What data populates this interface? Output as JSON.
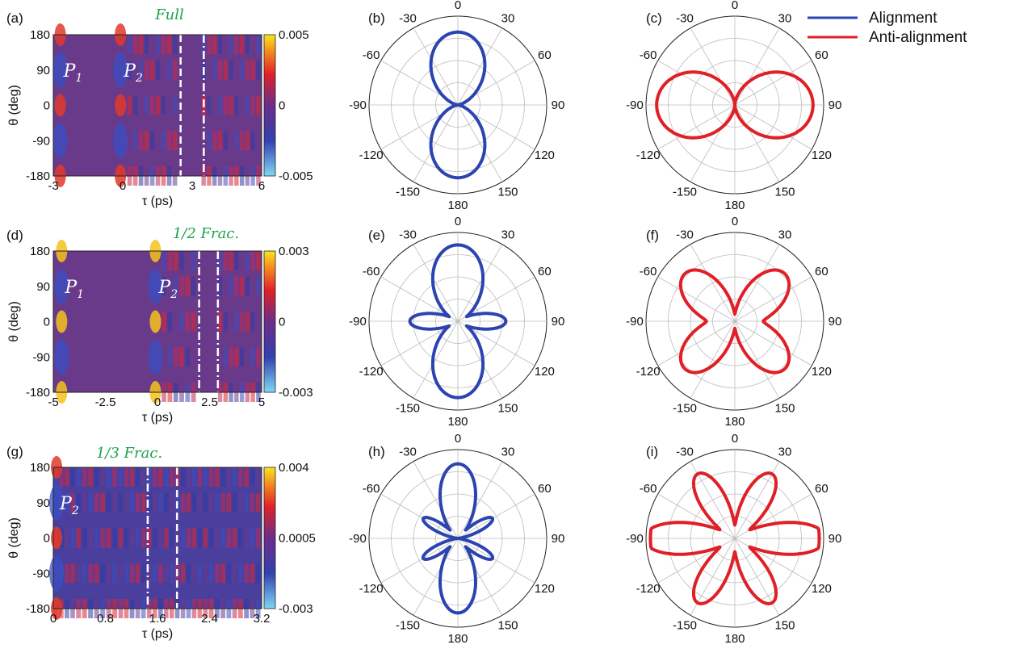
{
  "legend": {
    "entries": [
      {
        "label": "Alignment",
        "color": "#2b44b0"
      },
      {
        "label": "Anti-alignment",
        "color": "#e01f26"
      }
    ]
  },
  "chart_data": [
    {
      "type": "heatmap",
      "panel": "(a)",
      "annotation": "Full",
      "xlabel": "τ (ps)",
      "ylabel": "θ (deg)",
      "xlim": [
        -3,
        6
      ],
      "xticks": [
        "-3",
        "0",
        "3",
        "6"
      ],
      "ylim": [
        -180,
        180
      ],
      "yticks": [
        "180",
        "90",
        "0",
        "-90",
        "-180"
      ],
      "colorbar": {
        "ticks": [
          "0.005",
          "0",
          "-0.005"
        ],
        "range": [
          -0.005,
          0.005
        ]
      },
      "peaks": [
        {
          "label": "P",
          "sub": "1",
          "tau": -2.7
        },
        {
          "label": "P",
          "sub": "2",
          "tau": -0.1
        }
      ],
      "marker_lines": [
        {
          "tau": 2.5,
          "style": "dashed"
        },
        {
          "tau": 3.5,
          "style": "dash-dot"
        }
      ],
      "revival_bands": [
        -3,
        0.2,
        2.4,
        3.4,
        6
      ]
    },
    {
      "type": "heatmap",
      "panel": "(d)",
      "annotation": "1/2 Frac.",
      "xlabel": "τ (ps)",
      "ylabel": "θ (deg)",
      "xlim": [
        -5,
        5
      ],
      "xticks": [
        "-5",
        "-2.5",
        "0",
        "2.5",
        "5"
      ],
      "ylim": [
        -180,
        180
      ],
      "yticks": [
        "180",
        "90",
        "0",
        "-90",
        "-180"
      ],
      "colorbar": {
        "ticks": [
          "0.003",
          "0",
          "-0.003"
        ],
        "range": [
          -0.003,
          0.003
        ]
      },
      "peaks": [
        {
          "label": "P",
          "sub": "1",
          "tau": -4.6
        },
        {
          "label": "P",
          "sub": "2",
          "tau": -0.1
        }
      ],
      "marker_lines": [
        {
          "tau": 2.0,
          "style": "dash-dot"
        },
        {
          "tau": 2.9,
          "style": "dash-dot"
        }
      ],
      "revival_bands": [
        -5,
        0.2,
        1.9,
        2.9,
        5
      ]
    },
    {
      "type": "heatmap",
      "panel": "(g)",
      "annotation": "1/3 Frac.",
      "xlabel": "τ (ps)",
      "ylabel": "θ (deg)",
      "xlim": [
        0,
        3.2
      ],
      "xticks": [
        "0",
        "0.8",
        "1.6",
        "2.4",
        "3.2"
      ],
      "ylim": [
        -180,
        180
      ],
      "yticks": [
        "180",
        "90",
        "0",
        "-90",
        "-180"
      ],
      "colorbar": {
        "ticks": [
          "0.004",
          "0.0005",
          "-0.003"
        ],
        "range": [
          -0.003,
          0.004
        ]
      },
      "peaks": [
        {
          "label": "P",
          "sub": "2",
          "tau": 0.05
        }
      ],
      "marker_lines": [
        {
          "tau": 1.45,
          "style": "dash-dot"
        },
        {
          "tau": 1.9,
          "style": "dashed"
        }
      ],
      "revival_bands": [
        0,
        0.35,
        1.0,
        1.7,
        2.3,
        3.2
      ]
    },
    {
      "type": "polar",
      "panel": "(b)",
      "series": "Alignment",
      "shape": "cos2",
      "n": 1,
      "amp": [
        0.82,
        0.0
      ]
    },
    {
      "type": "polar",
      "panel": "(c)",
      "series": "Anti-alignment",
      "shape": "sin2",
      "n": 1,
      "amp": [
        0.0,
        0.88
      ]
    },
    {
      "type": "polar",
      "panel": "(e)",
      "series": "Alignment",
      "shape": "mixed",
      "amp": [
        0.84,
        0.52
      ]
    },
    {
      "type": "polar",
      "panel": "(f)",
      "series": "Anti-alignment",
      "shape": "butterfly",
      "amp": [
        0.66,
        0.8
      ]
    },
    {
      "type": "polar",
      "panel": "(h)",
      "series": "Alignment",
      "shape": "six-lobe",
      "amp": [
        0.84,
        0.5
      ]
    },
    {
      "type": "polar",
      "panel": "(i)",
      "series": "Anti-alignment",
      "shape": "six-lobe-wide",
      "amp": [
        0.62,
        0.86
      ]
    }
  ],
  "polar_ticks": [
    "0",
    "30",
    "60",
    "90",
    "120",
    "150",
    "180",
    "-150",
    "-120",
    "-90",
    "-60",
    "-30"
  ],
  "panel_labels": [
    "(a)",
    "(b)",
    "(c)",
    "(d)",
    "(e)",
    "(f)",
    "(g)",
    "(h)",
    "(i)"
  ]
}
